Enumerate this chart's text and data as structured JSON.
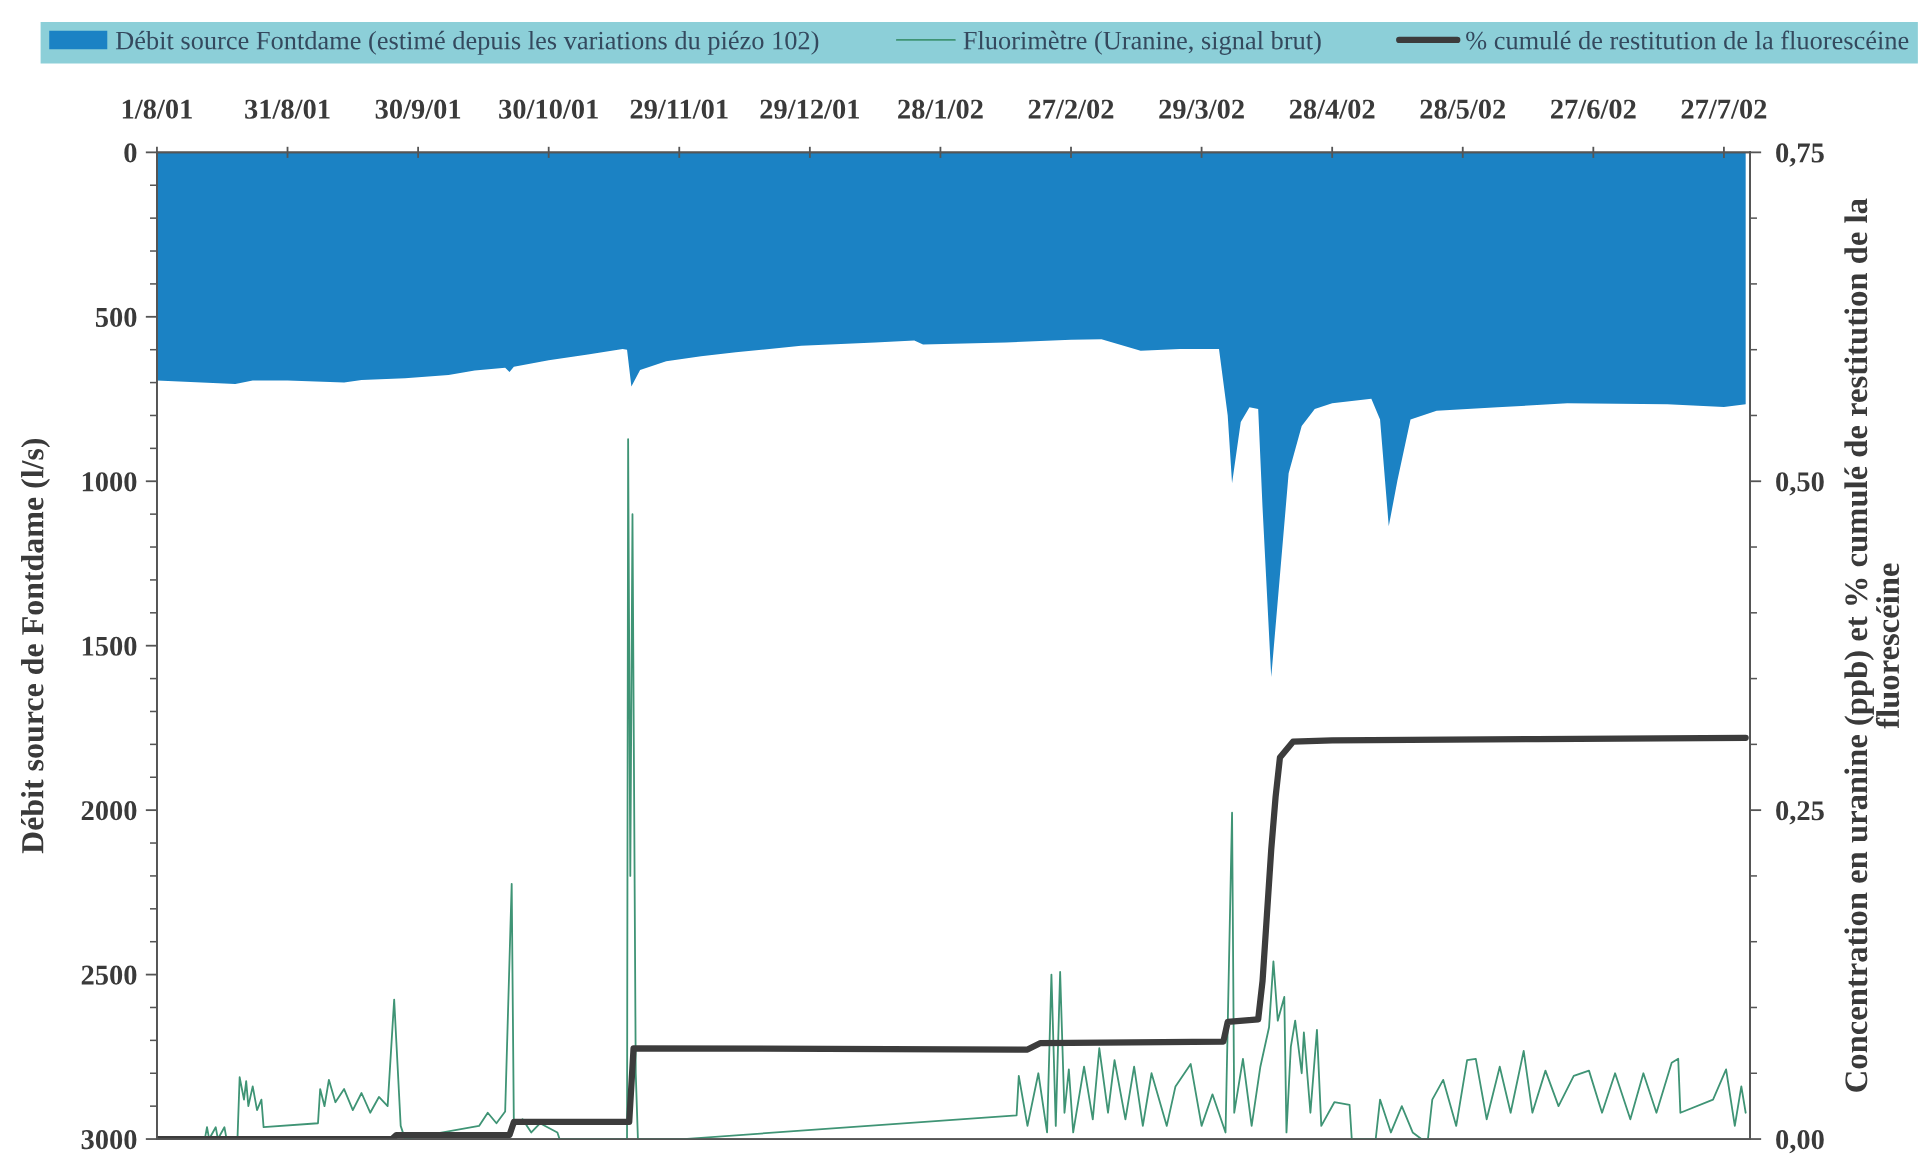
{
  "chart_data": {
    "type": "line",
    "xlim": [
      "2001-08-01",
      "2002-08-02"
    ],
    "xticks": [
      {
        "value": "2001-08-01",
        "label": "1/8/01"
      },
      {
        "value": "2001-08-31",
        "label": "31/8/01"
      },
      {
        "value": "2001-09-30",
        "label": "30/9/01"
      },
      {
        "value": "2001-10-30",
        "label": "30/10/01"
      },
      {
        "value": "2001-11-29",
        "label": "29/11/01"
      },
      {
        "value": "2001-12-29",
        "label": "29/12/01"
      },
      {
        "value": "2002-01-28",
        "label": "28/1/02"
      },
      {
        "value": "2002-02-27",
        "label": "27/2/02"
      },
      {
        "value": "2002-03-29",
        "label": "29/3/02"
      },
      {
        "value": "2002-04-28",
        "label": "28/4/02"
      },
      {
        "value": "2002-05-28",
        "label": "28/5/02"
      },
      {
        "value": "2002-06-27",
        "label": "27/6/02"
      },
      {
        "value": "2002-07-27",
        "label": "27/7/02"
      }
    ],
    "ylim": [
      3000,
      0
    ],
    "yticks": [
      0,
      {
        "value": 100,
        "label": null
      },
      {
        "value": 200,
        "label": null
      },
      {
        "value": 300,
        "label": null
      },
      {
        "value": 400,
        "label": null
      },
      500,
      {
        "value": 600,
        "label": null
      },
      {
        "value": 700,
        "label": null
      },
      {
        "value": 800,
        "label": null
      },
      {
        "value": 900,
        "label": null
      },
      1000,
      {
        "value": 1100,
        "label": null
      },
      {
        "value": 1200,
        "label": null
      },
      {
        "value": 1300,
        "label": null
      },
      {
        "value": 1400,
        "label": null
      },
      1500,
      {
        "value": 1600,
        "label": null
      },
      {
        "value": 1700,
        "label": null
      },
      {
        "value": 1800,
        "label": null
      },
      {
        "value": 1900,
        "label": null
      },
      2000,
      {
        "value": 2100,
        "label": null
      },
      {
        "value": 2200,
        "label": null
      },
      {
        "value": 2300,
        "label": null
      },
      {
        "value": 2400,
        "label": null
      },
      2500,
      {
        "value": 2600,
        "label": null
      },
      {
        "value": 2700,
        "label": null
      },
      {
        "value": 2800,
        "label": null
      },
      {
        "value": 2900,
        "label": null
      },
      3000
    ],
    "y2lim": [
      0,
      0.75
    ],
    "y2ticks": [
      {
        "value": 0,
        "label": "0,00"
      },
      {
        "value": 0.05,
        "label": null
      },
      {
        "value": 0.1,
        "label": null
      },
      {
        "value": 0.15,
        "label": null
      },
      {
        "value": 0.2,
        "label": null
      },
      {
        "value": 0.25,
        "label": "0,25"
      },
      {
        "value": 0.3,
        "label": null
      },
      {
        "value": 0.35,
        "label": null
      },
      {
        "value": 0.4,
        "label": null
      },
      {
        "value": 0.45,
        "label": null
      },
      {
        "value": 0.5,
        "label": "0,50"
      },
      {
        "value": 0.55,
        "label": null
      },
      {
        "value": 0.6,
        "label": null
      },
      {
        "value": 0.65,
        "label": null
      },
      {
        "value": 0.7,
        "label": null
      },
      {
        "value": 0.75,
        "label": "0,75"
      }
    ],
    "ylabel": "Débit source de Fontdame (l/s)",
    "y2label": "Concentration en uranine (ppb) et % cumulé de restitution de la fluorescéine",
    "legend": "top",
    "series": [
      {
        "name": "Débit source Fontdame (estimé depuis les variations du piézo 102)",
        "type": "area",
        "color": "#1b82c4",
        "x": [
          "2001-08-01",
          "2001-08-19",
          "2001-08-23",
          "2001-08-31",
          "2001-09-13",
          "2001-09-17",
          "2001-09-27",
          "2001-10-07",
          "2001-10-13",
          "2001-10-20",
          "2001-10-21",
          "2001-10-22",
          "2001-10-30",
          "2001-11-08",
          "2001-11-16",
          "2001-11-17",
          "2001-11-18",
          "2001-11-20",
          "2001-11-26",
          "2001-12-04",
          "2001-12-12",
          "2001-12-27",
          "2002-01-13",
          "2002-01-22",
          "2002-01-24",
          "2002-02-12",
          "2002-02-27",
          "2002-03-06",
          "2002-03-15",
          "2002-03-24",
          "2002-04-02",
          "2002-04-04",
          "2002-04-05",
          "2002-04-07",
          "2002-04-09",
          "2002-04-11",
          "2002-04-12",
          "2002-04-14",
          "2002-04-16",
          "2002-04-18",
          "2002-04-21",
          "2002-04-24",
          "2002-04-28",
          "2002-05-07",
          "2002-05-09",
          "2002-05-11",
          "2002-05-13",
          "2002-05-16",
          "2002-05-22",
          "2002-06-05",
          "2002-06-21",
          "2002-07-14",
          "2002-07-27",
          "2002-08-01"
        ],
        "values": [
          694,
          704,
          694,
          694,
          700,
          692,
          687,
          677,
          663,
          655,
          668,
          652,
          632,
          615,
          598,
          600,
          712,
          662,
          635,
          620,
          608,
          588,
          578,
          572,
          584,
          578,
          570,
          568,
          603,
          598,
          598,
          800,
          1006,
          820,
          775,
          780,
          1079,
          1595,
          1286,
          976,
          832,
          780,
          763,
          749,
          812,
          1137,
          997,
          812,
          786,
          775,
          763,
          766,
          774,
          766
        ]
      },
      {
        "name": "Fluorimètre (Uranine, signal brut)",
        "axis": "y2",
        "color": "#3f9475",
        "x": [
          "2001-08-01",
          "2001-08-12",
          "2001-08-12T12:00",
          "2001-08-13",
          "2001-08-14T12:00",
          "2001-08-15",
          "2001-08-16T12:00",
          "2001-08-17",
          "2001-08-19T12:00",
          "2001-08-20",
          "2001-08-21",
          "2001-08-21T12:00",
          "2001-08-22",
          "2001-08-23",
          "2001-08-24",
          "2001-08-25",
          "2001-08-25T12:00",
          "2001-09-07",
          "2001-09-07T12:00",
          "2001-09-08T12:00",
          "2001-09-09T12:00",
          "2001-09-11",
          "2001-09-13",
          "2001-09-15",
          "2001-09-17",
          "2001-09-19",
          "2001-09-21",
          "2001-09-23",
          "2001-09-24T12:00",
          "2001-09-25",
          "2001-09-26",
          "2001-09-27",
          "2001-10-14",
          "2001-10-16",
          "2001-10-18",
          "2001-10-20",
          "2001-10-21T12:00",
          "2001-10-22",
          "2001-10-24",
          "2001-10-26",
          "2001-10-28",
          "2001-11-01",
          "2001-11-01T12:00",
          "2001-11-17",
          "2001-11-17T06:00",
          "2001-11-17T18:00",
          "2001-11-18T06:00",
          "2001-11-19",
          "2001-11-19T12:00",
          "2001-11-30",
          "2002-02-14T12:00",
          "2002-02-15",
          "2002-02-17",
          "2002-02-19T12:00",
          "2002-02-21T12:00",
          "2002-02-22T12:00",
          "2002-02-23T12:00",
          "2002-02-24T12:00",
          "2002-02-25T12:00",
          "2002-02-26T12:00",
          "2002-02-27T12:00",
          "2002-03-02",
          "2002-03-04",
          "2002-03-05T12:00",
          "2002-03-07T12:00",
          "2002-03-09",
          "2002-03-11T12:00",
          "2002-03-13T12:00",
          "2002-03-15T12:00",
          "2002-03-17T12:00",
          "2002-03-21",
          "2002-03-23",
          "2002-03-26T12:00",
          "2002-03-29",
          "2002-03-31T12:00",
          "2002-04-03T12:00",
          "2002-04-05",
          "2002-04-05T12:00",
          "2002-04-07T12:00",
          "2002-04-09T12:00",
          "2002-04-11T12:00",
          "2002-04-13T12:00",
          "2002-04-14T12:00",
          "2002-04-15T12:00",
          "2002-04-17",
          "2002-04-17T12:00",
          "2002-04-18T12:00",
          "2002-04-19T12:00",
          "2002-04-21",
          "2002-04-21T12:00",
          "2002-04-23",
          "2002-04-24T12:00",
          "2002-04-25T12:00",
          "2002-04-28T12:00",
          "2002-05-02",
          "2002-05-02T12:00",
          "2002-05-08",
          "2002-05-09",
          "2002-05-11T12:00",
          "2002-05-14",
          "2002-05-16T12:00",
          "2002-05-18T12:00",
          "2002-05-20",
          "2002-05-21",
          "2002-05-23T12:00",
          "2002-05-26T12:00",
          "2002-05-29",
          "2002-05-31",
          "2002-06-02T12:00",
          "2002-06-05T12:00",
          "2002-06-08",
          "2002-06-11",
          "2002-06-13",
          "2002-06-16",
          "2002-06-19",
          "2002-06-22T12:00",
          "2002-06-26",
          "2002-06-29",
          "2002-07-02",
          "2002-07-05T12:00",
          "2002-07-08T12:00",
          "2002-07-11T12:00",
          "2002-07-15",
          "2002-07-16T12:00",
          "2002-07-17",
          "2002-07-24T12:00",
          "2002-07-27T12:00",
          "2002-07-29T12:00",
          "2002-07-31",
          "2002-08-01"
        ],
        "values": [
          0,
          0,
          0.009,
          0,
          0.009,
          0,
          0.009,
          0,
          0,
          0.047,
          0.03,
          0.044,
          0.025,
          0.04,
          0.022,
          0.03,
          0.009,
          0.012,
          0.038,
          0.025,
          0.045,
          0.028,
          0.038,
          0.022,
          0.035,
          0.02,
          0.032,
          0.025,
          0.106,
          0.074,
          0.01,
          0,
          0.01,
          0.02,
          0.012,
          0.021,
          0.194,
          0.01,
          0.015,
          0.005,
          0.012,
          0.005,
          0,
          0,
          0.532,
          0.2,
          0.475,
          0.05,
          0,
          0,
          0.018,
          0.048,
          0.01,
          0.05,
          0.005,
          0.125,
          0.01,
          0.127,
          0.02,
          0.053,
          0.005,
          0.055,
          0.015,
          0.069,
          0.02,
          0.06,
          0.015,
          0.055,
          0.01,
          0.05,
          0.01,
          0.04,
          0.057,
          0.01,
          0.034,
          0.005,
          0.248,
          0.02,
          0.061,
          0.01,
          0.055,
          0.085,
          0.135,
          0.09,
          0.108,
          0.005,
          0.07,
          0.09,
          0.05,
          0.081,
          0.02,
          0.083,
          0.01,
          0.028,
          0.026,
          0,
          0,
          0.03,
          0.005,
          0.025,
          0.005,
          0,
          0,
          0.03,
          0.045,
          0.01,
          0.06,
          0.061,
          0.015,
          0.055,
          0.02,
          0.067,
          0.02,
          0.052,
          0.025,
          0.048,
          0.052,
          0.02,
          0.05,
          0.015,
          0.05,
          0.02,
          0.058,
          0.061,
          0.02,
          0.03,
          0.053,
          0.01,
          0.04,
          0.02
        ]
      },
      {
        "name": "% cumulé de restitution de la fluorescéine",
        "axis": "y2",
        "color": "#3c3c3c",
        "x": [
          "2001-08-01",
          "2001-09-24",
          "2001-09-25",
          "2001-10-21",
          "2001-10-22",
          "2001-11-17T12:00",
          "2001-11-18T12:00",
          "2002-02-17",
          "2002-02-20",
          "2002-04-03",
          "2002-04-04",
          "2002-04-11",
          "2002-04-12",
          "2002-04-13",
          "2002-04-14",
          "2002-04-15",
          "2002-04-16",
          "2002-04-19",
          "2002-04-28",
          "2002-06-14",
          "2002-08-01"
        ],
        "values": [
          0,
          0,
          0.003,
          0.003,
          0.013,
          0.013,
          0.069,
          0.068,
          0.073,
          0.074,
          0.089,
          0.091,
          0.12,
          0.17,
          0.22,
          0.26,
          0.29,
          0.302,
          0.303,
          0.304,
          0.305
        ]
      }
    ]
  }
}
